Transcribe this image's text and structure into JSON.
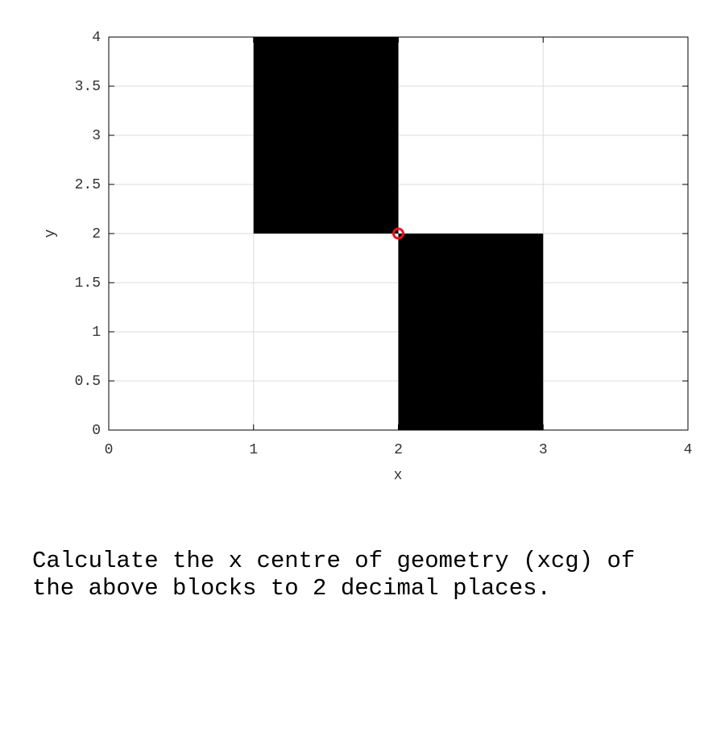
{
  "chart_data": {
    "type": "rect",
    "xlabel": "x",
    "ylabel": "y",
    "blocks": [
      {
        "x": [
          1,
          2
        ],
        "y": [
          2,
          4
        ],
        "color": "#000000"
      },
      {
        "x": [
          2,
          3
        ],
        "y": [
          0,
          2
        ],
        "color": "#000000"
      }
    ],
    "points": {
      "x": [
        2
      ],
      "y": [
        2
      ],
      "color": "#e8141c"
    },
    "xlim": [
      0,
      4
    ],
    "ylim": [
      0,
      4
    ],
    "xticks": [
      0,
      1,
      2,
      3,
      4
    ],
    "yticks": [
      0,
      0.5,
      1,
      1.5,
      2,
      2.5,
      3,
      3.5,
      4
    ],
    "grid": true
  },
  "question": "Calculate the x centre of geometry (xcg) of the above blocks to 2 decimal places."
}
